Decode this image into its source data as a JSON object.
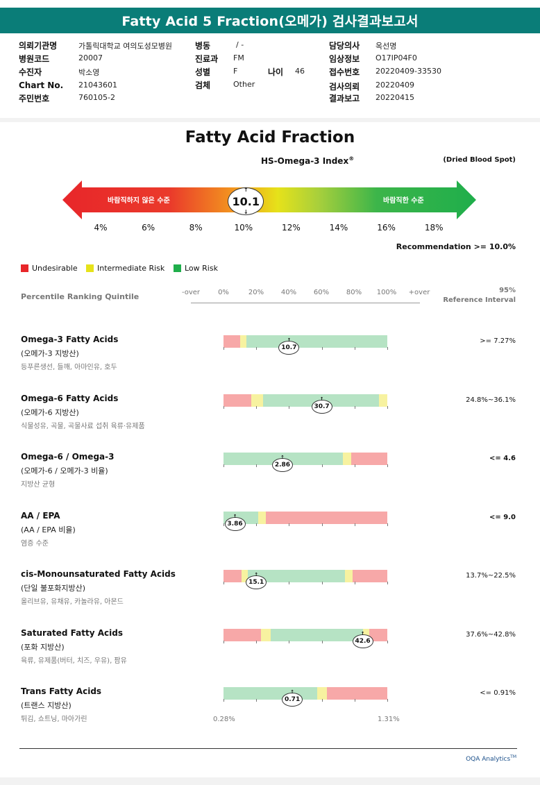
{
  "header": {
    "title": "Fatty Acid 5 Fraction(오메가) 검사결과보고서"
  },
  "patient_info": {
    "institution_label": "의뢰기관명",
    "institution": "가톨릭대학교 여의도성모병원",
    "ward_label": "병동",
    "ward": "/ -",
    "doctor_label": "담당의사",
    "doctor": "옥선명",
    "hospital_code_label": "병원코드",
    "hospital_code": "20007",
    "department_label": "진료과",
    "department": "FM",
    "clinical_label": "임상정보",
    "clinical": "O17IP04F0",
    "patient_label": "수진자",
    "patient": "박소영",
    "sex_label": "성별",
    "sex": "F",
    "age_label": "나이",
    "age": "46",
    "receipt_label": "접수번호",
    "receipt": "20220409-33530",
    "chart_label": "Chart No.",
    "chart": "21043601",
    "specimen_label": "검체",
    "specimen": "Other",
    "request_label": "검사의뢰",
    "request_date": "20220409",
    "id_label": "주민번호",
    "id_number": "760105-2",
    "result_label": "결과보고",
    "result_date": "20220415"
  },
  "report": {
    "title": "Fatty Acid Fraction",
    "index_name": "HS-Omega-3 Index",
    "index_mark": "®",
    "sample_type": "(Dried Blood Spot)",
    "arrow_left_label": "바람직하지 않은 수준",
    "arrow_right_label": "바람직한 수준",
    "index_value": "10.1",
    "index_value_num": 10.1,
    "ticks": [
      "4%",
      "6%",
      "8%",
      "10%",
      "12%",
      "14%",
      "16%",
      "18%"
    ],
    "recommendation": "Recommendation  >= 10.0%",
    "legend": [
      {
        "label": "Undesirable",
        "color": "#e8262a"
      },
      {
        "label": "Intermediate Risk",
        "color": "#e6e21a"
      },
      {
        "label": "Low Risk",
        "color": "#1fae4b"
      }
    ],
    "percentile_label": "Percentile Ranking Quintile",
    "percentile_ticks": [
      "-over",
      "0%",
      "20%",
      "40%",
      "60%",
      "80%",
      "100%",
      "+over"
    ],
    "ref_interval_label_1": "95%",
    "ref_interval_label_2": "Reference Interval"
  },
  "rows": [
    {
      "title": "Omega-3 Fatty Acids",
      "subtitle": "(오메가-3 지방산)",
      "description": "등푸른생선, 들깨, 아마인유, 호두",
      "value": "10.7",
      "value_pos": 0.4,
      "reference": ">= 7.27%",
      "ref_bold": false,
      "segments": [
        {
          "start": 0,
          "end": 0.1,
          "color": "#f7a8a8"
        },
        {
          "start": 0.1,
          "end": 0.14,
          "color": "#f7f2a0"
        },
        {
          "start": 0.14,
          "end": 1,
          "color": "#b6e3c4"
        }
      ]
    },
    {
      "title": "Omega-6 Fatty Acids",
      "subtitle": "(오메가-6 지방산)",
      "description": "식물성유, 곡물, 곡물사료 섭취 육류·유제품",
      "value": "30.7",
      "value_pos": 0.6,
      "reference": "24.8%~36.1%",
      "ref_bold": false,
      "segments": [
        {
          "start": 0,
          "end": 0.17,
          "color": "#f7a8a8"
        },
        {
          "start": 0.17,
          "end": 0.24,
          "color": "#f7f2a0"
        },
        {
          "start": 0.24,
          "end": 0.95,
          "color": "#b6e3c4"
        },
        {
          "start": 0.95,
          "end": 1,
          "color": "#f7f2a0"
        }
      ]
    },
    {
      "title": "Omega-6 / Omega-3",
      "subtitle": "(오메가-6 / 오메가-3 비율)",
      "description": "지방산 균형",
      "value": "2.86",
      "value_pos": 0.36,
      "reference": "<= 4.6",
      "ref_bold": true,
      "segments": [
        {
          "start": 0,
          "end": 0.73,
          "color": "#b6e3c4"
        },
        {
          "start": 0.73,
          "end": 0.78,
          "color": "#f7f2a0"
        },
        {
          "start": 0.78,
          "end": 1,
          "color": "#f7a8a8"
        }
      ]
    },
    {
      "title": "AA / EPA",
      "subtitle": "(AA / EPA 비율)",
      "description": "염증 수준",
      "value": "3.86",
      "value_pos": 0.07,
      "reference": "<= 9.0",
      "ref_bold": true,
      "segments": [
        {
          "start": 0,
          "end": 0.21,
          "color": "#b6e3c4"
        },
        {
          "start": 0.21,
          "end": 0.26,
          "color": "#f7f2a0"
        },
        {
          "start": 0.26,
          "end": 1,
          "color": "#f7a8a8"
        }
      ]
    },
    {
      "title": "cis-Monounsaturated Fatty Acids",
      "subtitle": "(단일 불포화지방산)",
      "description": "올리브유, 유채유, 카놀라유, 아몬드",
      "value": "15.1",
      "value_pos": 0.2,
      "reference": "13.7%~22.5%",
      "ref_bold": false,
      "segments": [
        {
          "start": 0,
          "end": 0.11,
          "color": "#f7a8a8"
        },
        {
          "start": 0.11,
          "end": 0.15,
          "color": "#f7f2a0"
        },
        {
          "start": 0.15,
          "end": 0.74,
          "color": "#b6e3c4"
        },
        {
          "start": 0.74,
          "end": 0.79,
          "color": "#f7f2a0"
        },
        {
          "start": 0.79,
          "end": 1,
          "color": "#f7a8a8"
        }
      ]
    },
    {
      "title": "Saturated Fatty Acids",
      "subtitle": "(포화 지방산)",
      "description": "육류, 유제품(버터, 치즈, 우유), 팜유",
      "value": "42.6",
      "value_pos": 0.85,
      "reference": "37.6%~42.8%",
      "ref_bold": false,
      "segments": [
        {
          "start": 0,
          "end": 0.23,
          "color": "#f7a8a8"
        },
        {
          "start": 0.23,
          "end": 0.29,
          "color": "#f7f2a0"
        },
        {
          "start": 0.29,
          "end": 0.85,
          "color": "#b6e3c4"
        },
        {
          "start": 0.85,
          "end": 0.89,
          "color": "#f7f2a0"
        },
        {
          "start": 0.89,
          "end": 1,
          "color": "#f7a8a8"
        }
      ]
    },
    {
      "title": "Trans Fatty Acids",
      "subtitle": "(트랜스 지방산)",
      "description": "튀김, 쇼트닝, 마아가린",
      "value": "0.71",
      "value_pos": 0.42,
      "reference": "<= 0.91%",
      "ref_bold": false,
      "segments": [
        {
          "start": 0,
          "end": 0.57,
          "color": "#b6e3c4"
        },
        {
          "start": 0.57,
          "end": 0.63,
          "color": "#f7f2a0"
        },
        {
          "start": 0.63,
          "end": 1,
          "color": "#f7a8a8"
        }
      ]
    }
  ],
  "trans_axis": {
    "min_label": "0.28%",
    "max_label": "1.31%"
  },
  "footer": {
    "brand": "OQA Analytics",
    "mark": "TM"
  }
}
